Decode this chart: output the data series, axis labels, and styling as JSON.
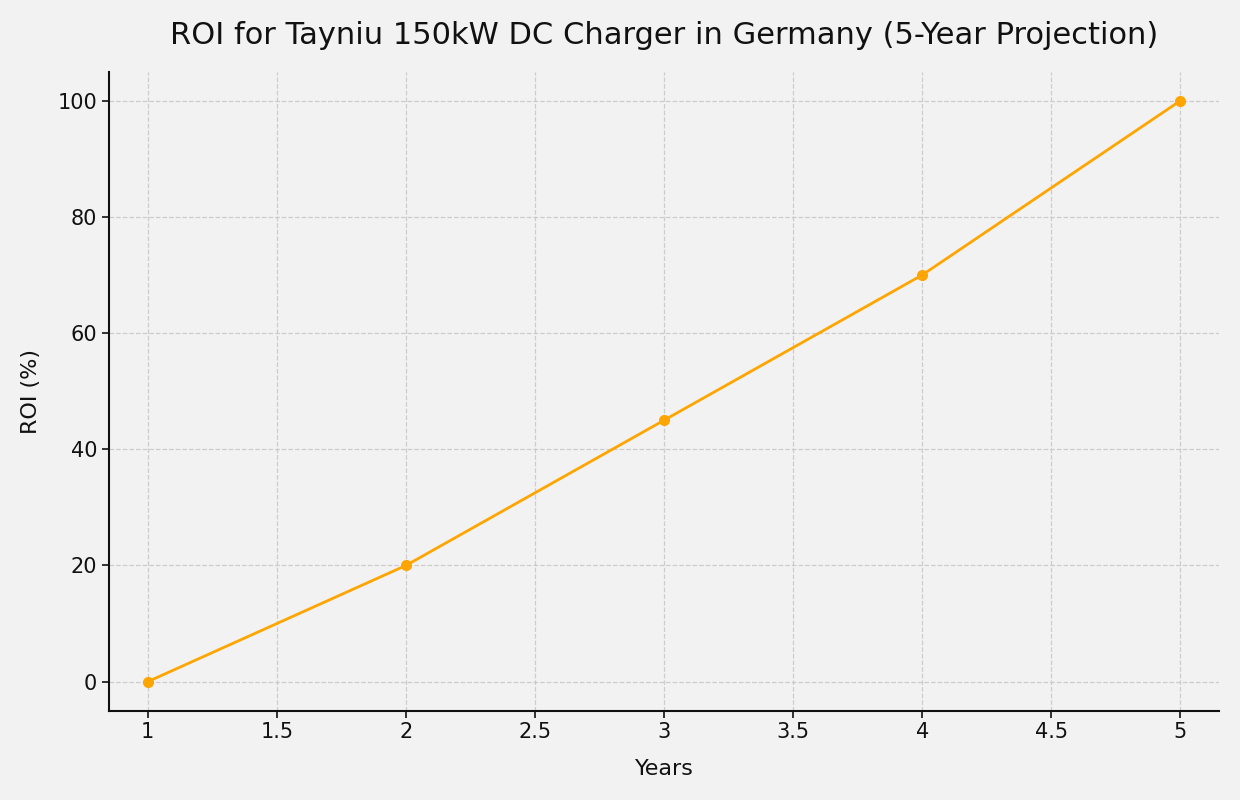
{
  "title": "ROI for Tayniu 150kW DC Charger in Germany (5-Year Projection)",
  "xlabel": "Years",
  "ylabel": "ROI (%)",
  "x_values": [
    1,
    2,
    3,
    4,
    5
  ],
  "y_values": [
    0,
    20,
    45,
    70,
    100
  ],
  "line_color": "#FFA500",
  "marker": "o",
  "marker_color": "#FFA500",
  "marker_size": 7,
  "line_width": 2.0,
  "xlim": [
    0.85,
    5.15
  ],
  "ylim": [
    -5,
    105
  ],
  "xticks": [
    1.0,
    1.5,
    2.0,
    2.5,
    3.0,
    3.5,
    4.0,
    4.5,
    5.0
  ],
  "yticks": [
    0,
    20,
    40,
    60,
    80,
    100
  ],
  "title_fontsize": 22,
  "axis_label_fontsize": 16,
  "tick_fontsize": 15,
  "grid_color": "#c8c8c8",
  "grid_linestyle": "--",
  "grid_alpha": 0.9,
  "background_color": "#f2f2f2",
  "plot_bg_color": "#f2f2f2",
  "spine_color": "#111111"
}
